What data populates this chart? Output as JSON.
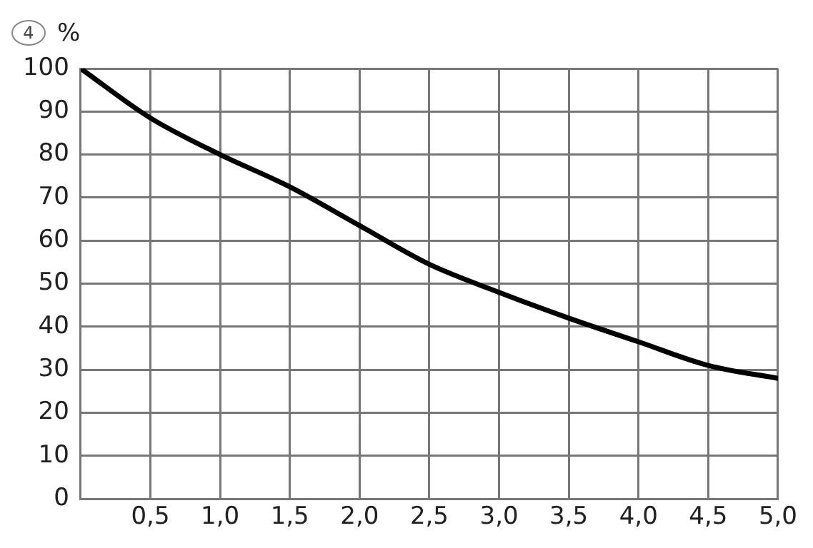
{
  "chart_data": {
    "type": "line",
    "ylabel": "%",
    "annotations": [
      "4"
    ],
    "x": [
      0,
      0.5,
      1.0,
      1.5,
      2.0,
      2.5,
      3.0,
      3.5,
      4.0,
      4.5,
      5.0
    ],
    "series": [
      {
        "color": "#000000",
        "values": [
          100,
          88.5,
          80,
          72.5,
          63.5,
          54.5,
          48,
          42,
          36.5,
          31,
          28
        ]
      }
    ],
    "xlim": [
      0,
      5
    ],
    "xticks": [
      {
        "value": 0,
        "label": null
      },
      {
        "value": 0.5,
        "label": "0,5"
      },
      {
        "value": 1,
        "label": "1,0"
      },
      {
        "value": 1.5,
        "label": "1,5"
      },
      {
        "value": 2,
        "label": "2,0"
      },
      {
        "value": 2.5,
        "label": "2,5"
      },
      {
        "value": 3,
        "label": "3,0"
      },
      {
        "value": 3.5,
        "label": "3,5"
      },
      {
        "value": 4,
        "label": "4,0"
      },
      {
        "value": 4.5,
        "label": "4,5"
      },
      {
        "value": 5,
        "label": "5,0"
      }
    ],
    "ylim": [
      0,
      100
    ],
    "yticks": [
      0,
      10,
      20,
      30,
      40,
      50,
      60,
      70,
      80,
      90,
      100
    ],
    "grid": true,
    "legend": false,
    "marker": "none",
    "line_style": "solid"
  }
}
